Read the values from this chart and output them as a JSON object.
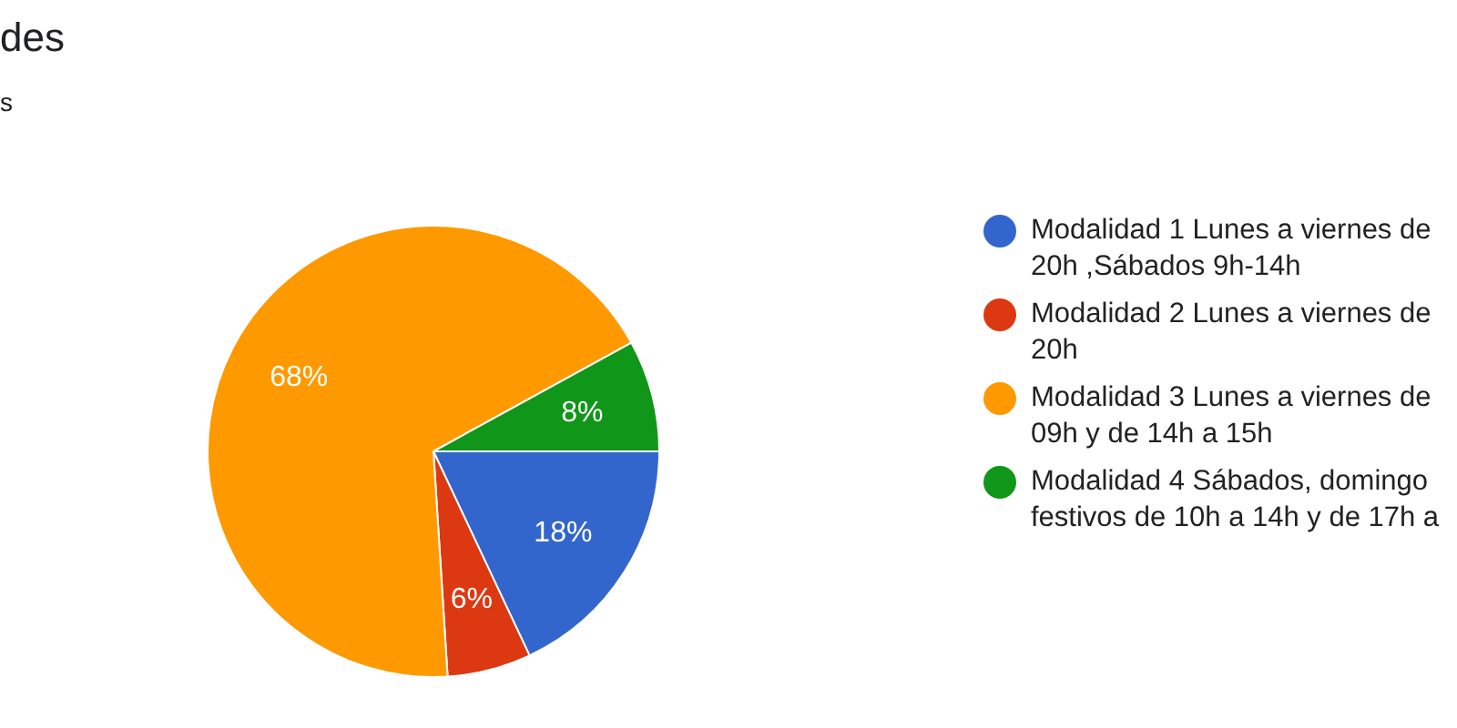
{
  "chart_data": {
    "type": "pie",
    "title": "des",
    "subtitle": "s",
    "categories": [
      "Modalidad 1 Lunes a viernes de\n20h ,Sábados 9h-14h",
      "Modalidad 2 Lunes a viernes de\n20h",
      "Modalidad 3 Lunes a viernes de\n09h y de 14h a 15h",
      "Modalidad 4 Sábados, domingo\nfestivos de 10h a 14h y de 17h a"
    ],
    "values": [
      18,
      6,
      68,
      8
    ],
    "colors": [
      "#3366cc",
      "#dc3912",
      "#ff9900",
      "#109618"
    ],
    "value_labels": [
      "18%",
      "6%",
      "68%",
      "8%"
    ],
    "legend": "right"
  }
}
